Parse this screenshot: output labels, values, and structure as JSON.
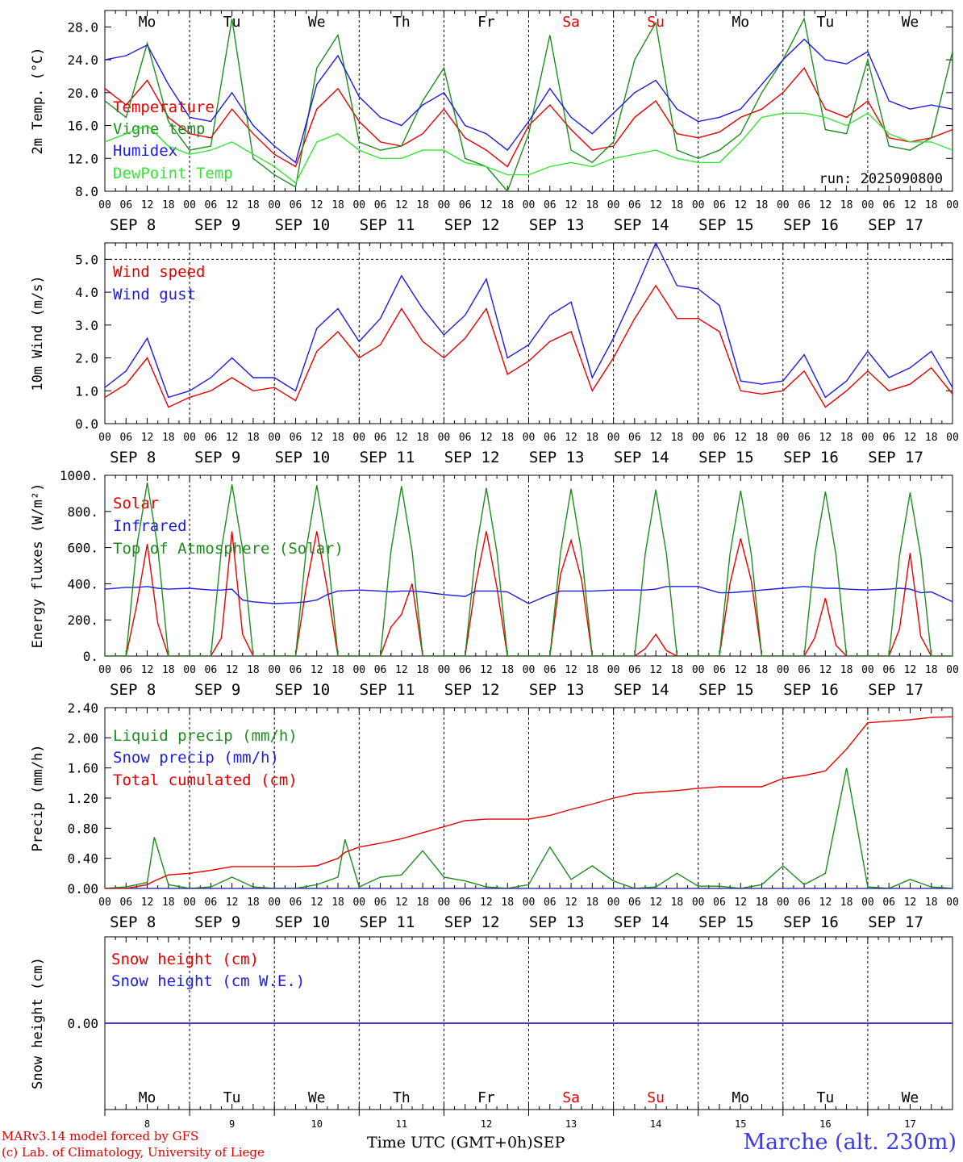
{
  "colors": {
    "red": "#e60000",
    "green": "#1f8c1f",
    "blue": "#1c1ce0",
    "lightgreen": "#33e633",
    "weekend": "#e60000"
  },
  "days": {
    "weekdays": [
      "Mo",
      "Tu",
      "We",
      "Th",
      "Fr",
      "Sa",
      "Su",
      "Mo",
      "Tu",
      "We"
    ],
    "weekend_flags": [
      false,
      false,
      false,
      false,
      false,
      true,
      true,
      false,
      false,
      false
    ],
    "dates": [
      "SEP  8",
      "SEP  9",
      "SEP 10",
      "SEP 11",
      "SEP 12",
      "SEP 13",
      "SEP 14",
      "SEP 15",
      "SEP 16",
      "SEP 17"
    ],
    "day_numbers": [
      "8",
      "9",
      "10",
      "11",
      "12",
      "13",
      "14",
      "15",
      "16",
      "17"
    ],
    "hour_ticks": [
      "00",
      "06",
      "12",
      "18"
    ],
    "end_tick": "00"
  },
  "footer": {
    "model": "MARv3.14 model forced by GFS",
    "lab": "(c) Lab. of Climatology, University of Liege",
    "time_label": "Time UTC (GMT+0h)",
    "month": "SEP",
    "station": "Marche (alt. 230m)"
  },
  "chart_data": [
    {
      "type": "line",
      "ylabel": "2m Temp. (°C)",
      "ylim": [
        8,
        30
      ],
      "yticks": [
        "8.0",
        "12.0",
        "16.0",
        "20.0",
        "24.0",
        "28.0"
      ],
      "yticks_values": [
        8,
        12,
        16,
        20,
        24,
        28
      ],
      "run_label": "run: 2025090800",
      "x_hours": [
        0,
        6,
        12,
        18,
        24,
        30,
        36,
        42,
        48,
        54,
        60,
        66,
        72,
        78,
        84,
        90,
        96,
        102,
        108,
        114,
        120,
        126,
        132,
        138,
        144,
        150,
        156,
        162,
        168,
        174,
        180,
        186,
        192,
        198,
        204,
        210,
        216,
        222,
        228,
        234,
        240
      ],
      "series": [
        {
          "name": "Temperature",
          "color": "red",
          "values": [
            20.5,
            18.5,
            21.5,
            17,
            15,
            14.5,
            18,
            15,
            12.5,
            11,
            18,
            20.5,
            16.5,
            14,
            13.5,
            15,
            18,
            14.5,
            13,
            11,
            16,
            18.5,
            15.5,
            13,
            13.5,
            17,
            19,
            15,
            14.5,
            15.2,
            17,
            18,
            20,
            23,
            18,
            17,
            19,
            14.5,
            14,
            14.5,
            15.5
          ]
        },
        {
          "name": "Vigne temp",
          "color": "green",
          "values": [
            19,
            17,
            26,
            16.5,
            13,
            13.5,
            29,
            12,
            10,
            8.5,
            23,
            27,
            14,
            13,
            13.5,
            19,
            23,
            12,
            11,
            8,
            15,
            27,
            13,
            11.5,
            14,
            24,
            28.5,
            13,
            12,
            13,
            15,
            20,
            24,
            29,
            15.5,
            15,
            24,
            13.5,
            13,
            14.5,
            25
          ]
        },
        {
          "name": "Humidex",
          "color": "blue",
          "values": [
            24,
            24.5,
            25.8,
            21,
            17,
            16.5,
            20,
            16,
            13.5,
            11.5,
            21,
            24.5,
            19.5,
            17,
            16,
            18.5,
            20,
            16,
            15,
            13,
            16.5,
            20.5,
            17,
            15,
            17.5,
            20,
            21.5,
            18,
            16.5,
            17,
            18,
            21,
            24,
            26.5,
            24,
            23.5,
            25,
            19,
            18,
            18.5,
            18
          ]
        },
        {
          "name": "DewPoint Temp",
          "color": "lightgreen",
          "values": [
            14,
            15,
            16,
            13.5,
            12.5,
            13,
            14,
            12.5,
            11,
            9,
            14,
            15,
            13,
            12,
            12,
            13,
            13,
            11.5,
            11,
            10,
            10,
            11,
            11.5,
            11,
            12,
            12.5,
            13,
            12,
            11.5,
            11.5,
            14,
            17,
            17.5,
            17.5,
            17,
            16,
            17.5,
            15,
            14,
            14,
            13
          ]
        }
      ]
    },
    {
      "type": "line",
      "ylabel": "10m Wind (m/s)",
      "ylim": [
        0,
        5.5
      ],
      "yticks": [
        "0.0",
        "1.0",
        "2.0",
        "3.0",
        "4.0",
        "5.0"
      ],
      "yticks_values": [
        0,
        1,
        2,
        3,
        4,
        5
      ],
      "ref_line": 5.0,
      "x_hours": [
        0,
        6,
        12,
        18,
        24,
        30,
        36,
        42,
        48,
        54,
        60,
        66,
        72,
        78,
        84,
        90,
        96,
        102,
        108,
        114,
        120,
        126,
        132,
        138,
        144,
        150,
        156,
        162,
        168,
        174,
        180,
        186,
        192,
        198,
        204,
        210,
        216,
        222,
        228,
        234,
        240
      ],
      "series": [
        {
          "name": "Wind speed",
          "color": "red",
          "values": [
            0.8,
            1.2,
            2.0,
            0.5,
            0.8,
            1.0,
            1.4,
            1.0,
            1.1,
            0.7,
            2.2,
            2.8,
            2.0,
            2.4,
            3.5,
            2.5,
            2.0,
            2.6,
            3.5,
            1.5,
            1.9,
            2.5,
            2.8,
            1.0,
            2.0,
            3.2,
            4.2,
            3.2,
            3.2,
            2.8,
            1.0,
            0.9,
            1.0,
            1.6,
            0.5,
            1.0,
            1.6,
            1.0,
            1.2,
            1.7,
            0.9
          ]
        },
        {
          "name": "Wind gust",
          "color": "blue",
          "values": [
            1.1,
            1.6,
            2.6,
            0.8,
            1.0,
            1.4,
            2.0,
            1.4,
            1.4,
            1.0,
            2.9,
            3.5,
            2.5,
            3.2,
            4.5,
            3.5,
            2.7,
            3.3,
            4.4,
            2.0,
            2.4,
            3.3,
            3.7,
            1.4,
            2.6,
            4.0,
            5.5,
            4.2,
            4.1,
            3.6,
            1.3,
            1.2,
            1.3,
            2.1,
            0.8,
            1.3,
            2.2,
            1.4,
            1.7,
            2.2,
            1.1
          ]
        }
      ]
    },
    {
      "type": "line",
      "ylabel": "Energy fluxes (W/m²)",
      "ylim": [
        0,
        1000
      ],
      "yticks": [
        "0.",
        "200.",
        "400.",
        "600.",
        "800.",
        "1000."
      ],
      "yticks_values": [
        0,
        200,
        400,
        600,
        800,
        1000
      ],
      "x_hours": [
        0,
        6,
        9,
        12,
        15,
        18,
        24,
        30,
        33,
        36,
        39,
        42,
        48,
        54,
        57,
        60,
        63,
        66,
        72,
        78,
        81,
        84,
        87,
        90,
        96,
        102,
        105,
        108,
        111,
        114,
        120,
        126,
        129,
        132,
        135,
        138,
        144,
        150,
        153,
        156,
        159,
        162,
        168,
        174,
        177,
        180,
        183,
        186,
        192,
        198,
        201,
        204,
        207,
        210,
        216,
        222,
        225,
        228,
        231,
        234,
        240
      ],
      "series": [
        {
          "name": "Solar",
          "color": "red",
          "values": [
            0,
            0,
            280,
            620,
            180,
            0,
            0,
            0,
            100,
            690,
            120,
            0,
            0,
            0,
            380,
            690,
            370,
            0,
            0,
            0,
            160,
            230,
            400,
            0,
            0,
            0,
            400,
            690,
            380,
            0,
            0,
            0,
            450,
            640,
            420,
            0,
            0,
            0,
            40,
            120,
            30,
            0,
            0,
            0,
            400,
            650,
            420,
            0,
            0,
            0,
            100,
            320,
            60,
            0,
            0,
            0,
            150,
            570,
            110,
            0,
            0
          ]
        },
        {
          "name": "Infrared",
          "color": "blue",
          "values": [
            370,
            380,
            380,
            385,
            375,
            370,
            375,
            365,
            365,
            370,
            310,
            300,
            290,
            295,
            300,
            310,
            340,
            360,
            365,
            360,
            355,
            360,
            360,
            355,
            340,
            330,
            360,
            360,
            360,
            355,
            290,
            340,
            360,
            360,
            360,
            360,
            365,
            365,
            365,
            370,
            385,
            385,
            385,
            350,
            350,
            355,
            360,
            365,
            375,
            385,
            380,
            375,
            375,
            370,
            365,
            370,
            375,
            370,
            350,
            355,
            300
          ]
        },
        {
          "name": "Top of Atmosphere (Solar)",
          "color": "green",
          "values": [
            0,
            0,
            600,
            960,
            600,
            0,
            0,
            0,
            590,
            950,
            590,
            0,
            0,
            0,
            590,
            945,
            590,
            0,
            0,
            0,
            580,
            940,
            580,
            0,
            0,
            0,
            575,
            930,
            575,
            0,
            0,
            0,
            570,
            925,
            570,
            0,
            0,
            0,
            565,
            920,
            565,
            0,
            0,
            0,
            565,
            915,
            565,
            0,
            0,
            0,
            560,
            910,
            560,
            0,
            0,
            0,
            555,
            905,
            555,
            0,
            0
          ]
        }
      ]
    },
    {
      "type": "line",
      "ylabel": "Precip (mm/h)",
      "ylim": [
        0,
        2.4
      ],
      "yticks": [
        "0.00",
        "0.40",
        "0.80",
        "1.20",
        "1.60",
        "2.00",
        "2.40"
      ],
      "yticks_values": [
        0,
        0.4,
        0.8,
        1.2,
        1.6,
        2.0,
        2.4
      ],
      "x_hours": [
        0,
        6,
        12,
        14,
        18,
        24,
        30,
        36,
        42,
        48,
        54,
        60,
        66,
        68,
        72,
        78,
        84,
        90,
        96,
        102,
        108,
        114,
        120,
        126,
        132,
        138,
        144,
        150,
        156,
        162,
        168,
        174,
        180,
        186,
        192,
        198,
        204,
        210,
        216,
        222,
        228,
        234,
        240
      ],
      "series": [
        {
          "name": "Liquid precip (mm/h)",
          "color": "green",
          "values": [
            0,
            0.02,
            0.08,
            0.68,
            0.05,
            0,
            0.02,
            0.15,
            0.02,
            0,
            0,
            0.05,
            0.15,
            0.65,
            0.02,
            0.15,
            0.18,
            0.5,
            0.15,
            0.1,
            0.02,
            0,
            0.05,
            0.55,
            0.12,
            0.3,
            0.1,
            0,
            0.02,
            0.2,
            0.03,
            0.03,
            0,
            0.05,
            0.3,
            0.05,
            0.2,
            1.6,
            0.02,
            0,
            0.12,
            0.02,
            0
          ]
        },
        {
          "name": "Snow precip (mm/h)",
          "color": "blue",
          "values": [
            0,
            0,
            0,
            0,
            0,
            0,
            0,
            0,
            0,
            0,
            0,
            0,
            0,
            0,
            0,
            0,
            0,
            0,
            0,
            0,
            0,
            0,
            0,
            0,
            0,
            0,
            0,
            0,
            0,
            0,
            0,
            0,
            0,
            0,
            0,
            0,
            0,
            0,
            0,
            0,
            0,
            0,
            0
          ]
        },
        {
          "name": "Total cumulated (cm)",
          "color": "red",
          "values": [
            0,
            0,
            0.05,
            0.1,
            0.18,
            0.2,
            0.24,
            0.29,
            0.29,
            0.29,
            0.29,
            0.3,
            0.4,
            0.48,
            0.55,
            0.6,
            0.66,
            0.74,
            0.82,
            0.9,
            0.92,
            0.92,
            0.92,
            0.97,
            1.05,
            1.12,
            1.2,
            1.26,
            1.28,
            1.3,
            1.33,
            1.35,
            1.35,
            1.35,
            1.46,
            1.5,
            1.56,
            1.85,
            2.2,
            2.22,
            2.24,
            2.27,
            2.28
          ]
        }
      ]
    },
    {
      "type": "line",
      "ylabel": "Snow height (cm)",
      "ylim": [
        -1,
        1
      ],
      "yticks": [
        "0.00"
      ],
      "yticks_values": [
        0
      ],
      "x_hours": [
        0,
        240
      ],
      "series": [
        {
          "name": "Snow height (cm)",
          "color": "red",
          "values": [
            0,
            0
          ]
        },
        {
          "name": "Snow height (cm W.E.)",
          "color": "blue",
          "values": [
            0,
            0
          ]
        }
      ]
    }
  ]
}
